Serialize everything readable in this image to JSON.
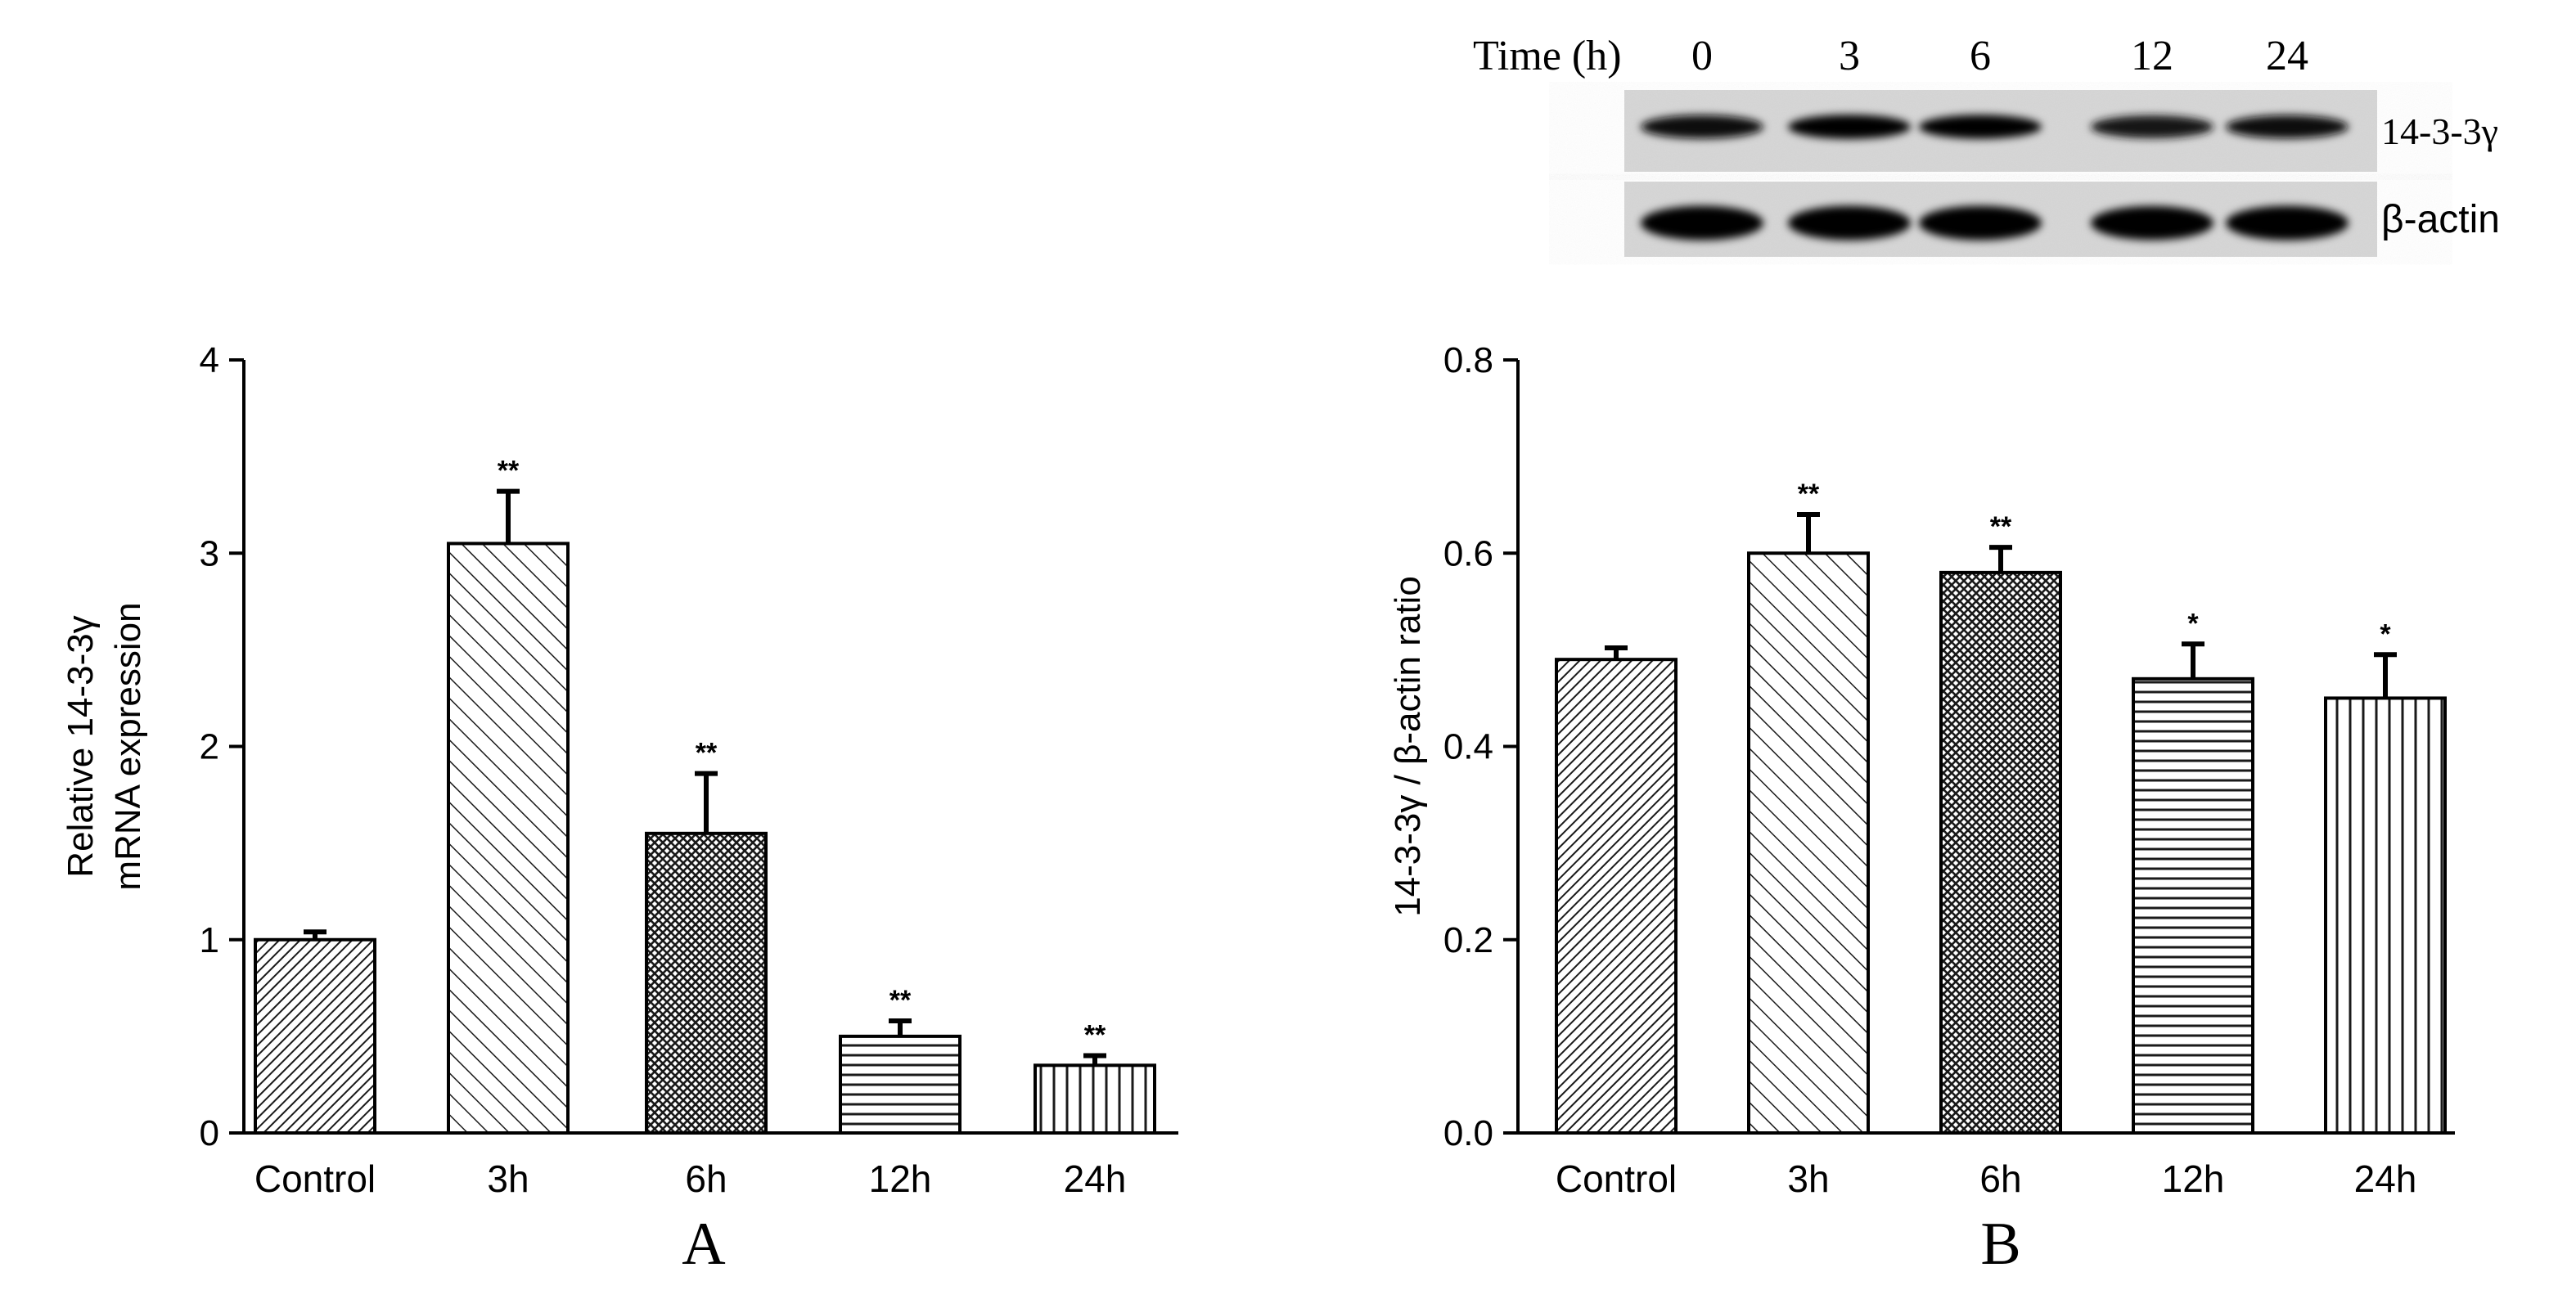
{
  "blot": {
    "time_label": "Time (h)",
    "lanes": [
      "0",
      "3",
      "6",
      "12",
      "24"
    ],
    "rows": [
      {
        "label": "14-3-3γ",
        "band_intensity": [
          0.85,
          0.95,
          0.9,
          0.7,
          0.8
        ]
      },
      {
        "label": "β-actin",
        "band_intensity": [
          1.0,
          1.0,
          1.0,
          0.95,
          1.0
        ]
      }
    ]
  },
  "chart_data": [
    {
      "type": "bar",
      "panel_label": "A",
      "categories": [
        "Control",
        "3h",
        "6h",
        "12h",
        "24h"
      ],
      "values": [
        1.0,
        3.05,
        1.55,
        0.5,
        0.35
      ],
      "errors": [
        0.04,
        0.27,
        0.31,
        0.08,
        0.05
      ],
      "significance": [
        "",
        "**",
        "**",
        "**",
        "**"
      ],
      "patterns": [
        "dense-diagonal",
        "wide-diagonal",
        "crosshatch",
        "horizontal",
        "vertical"
      ],
      "ylabel": [
        "Relative 14-3-3γ",
        "mRNA  expression"
      ],
      "ylim": [
        0,
        4
      ],
      "yticks": [
        "0",
        "1",
        "2",
        "3",
        "4"
      ],
      "grid": false
    },
    {
      "type": "bar",
      "panel_label": "B",
      "categories": [
        "Control",
        "3h",
        "6h",
        "12h",
        "24h"
      ],
      "values": [
        0.49,
        0.6,
        0.58,
        0.47,
        0.45
      ],
      "errors": [
        0.012,
        0.04,
        0.026,
        0.036,
        0.045
      ],
      "significance": [
        "",
        "**",
        "**",
        "*",
        "*"
      ],
      "patterns": [
        "dense-diagonal",
        "wide-diagonal",
        "crosshatch",
        "horizontal",
        "vertical"
      ],
      "ylabel": [
        "14-3-3γ / β-actin ratio"
      ],
      "ylim": [
        0,
        0.8
      ],
      "yticks": [
        "0.0",
        "0.2",
        "0.4",
        "0.6",
        "0.8"
      ],
      "grid": false
    }
  ]
}
